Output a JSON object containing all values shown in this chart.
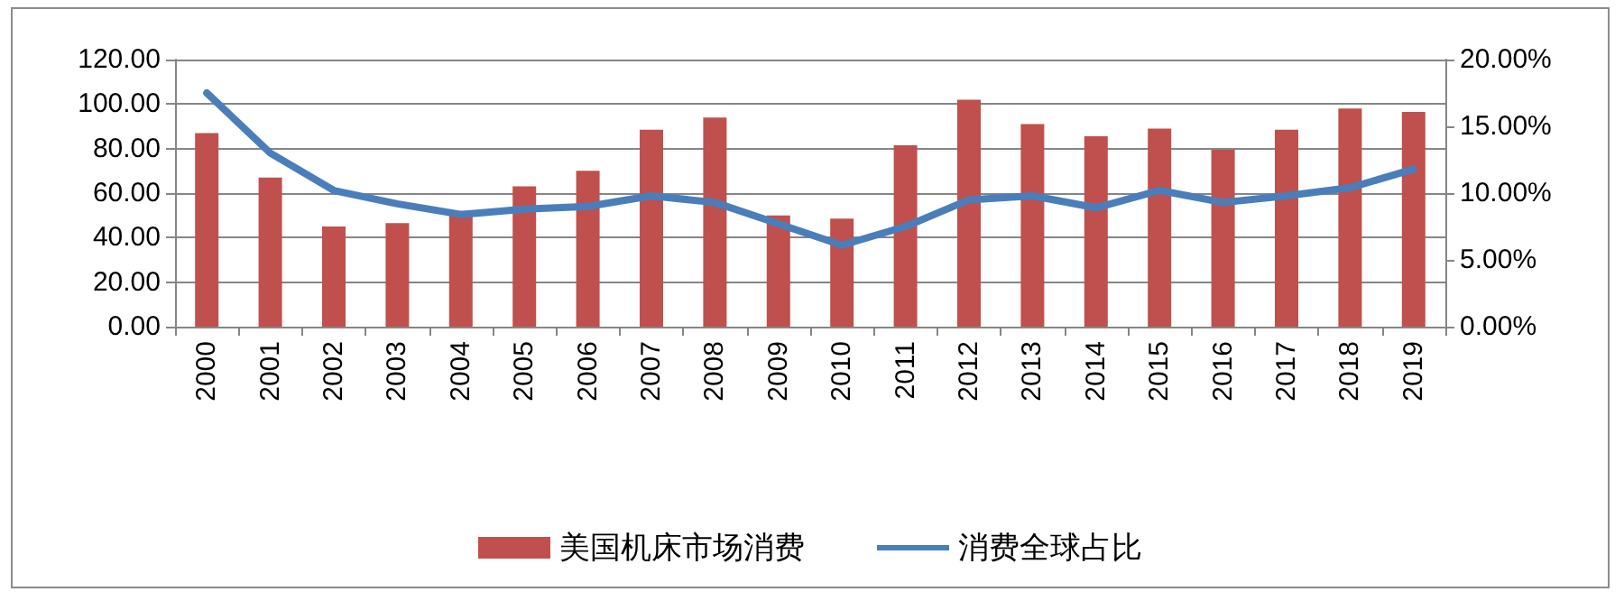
{
  "chart_data": {
    "type": "bar",
    "categories": [
      "2000",
      "2001",
      "2002",
      "2003",
      "2004",
      "2005",
      "2006",
      "2007",
      "2008",
      "2009",
      "2010",
      "2011",
      "2012",
      "2013",
      "2014",
      "2015",
      "2016",
      "2017",
      "2018",
      "2019"
    ],
    "series": [
      {
        "name": "美国机床市场消费",
        "color": "#c0504d",
        "values": [
          87,
          67,
          45,
          46.5,
          52,
          63,
          70,
          88.5,
          94,
          50,
          48.5,
          81.5,
          102,
          91,
          85.5,
          89,
          79.5,
          88.5,
          98,
          96.5
        ]
      },
      {
        "name": "消费全球占比",
        "type": "line",
        "axis": "y2",
        "color": "#4a7ebb",
        "values": [
          17.5,
          13,
          10.2,
          9.2,
          8.4,
          8.8,
          9.0,
          9.8,
          9.3,
          7.7,
          6.1,
          7.5,
          9.5,
          9.8,
          8.9,
          10.2,
          9.3,
          9.8,
          10.4,
          11.8
        ]
      }
    ],
    "ylim": [
      0,
      120
    ],
    "yticks": [
      {
        "value": 0,
        "label": "0.00"
      },
      {
        "value": 20,
        "label": "20.00"
      },
      {
        "value": 40,
        "label": "40.00"
      },
      {
        "value": 60,
        "label": "60.00"
      },
      {
        "value": 80,
        "label": "80.00"
      },
      {
        "value": 100,
        "label": "100.00"
      },
      {
        "value": 120,
        "label": "120.00"
      }
    ],
    "y2lim": [
      0,
      20
    ],
    "y2ticks": [
      {
        "value": 0,
        "label": "0.00%"
      },
      {
        "value": 5,
        "label": "5.00%"
      },
      {
        "value": 10,
        "label": "10.00%"
      },
      {
        "value": 15,
        "label": "15.00%"
      },
      {
        "value": 20,
        "label": "20.00%"
      }
    ],
    "grid": "y",
    "legend": "bottom",
    "marker": "none",
    "line_style": "solid"
  }
}
